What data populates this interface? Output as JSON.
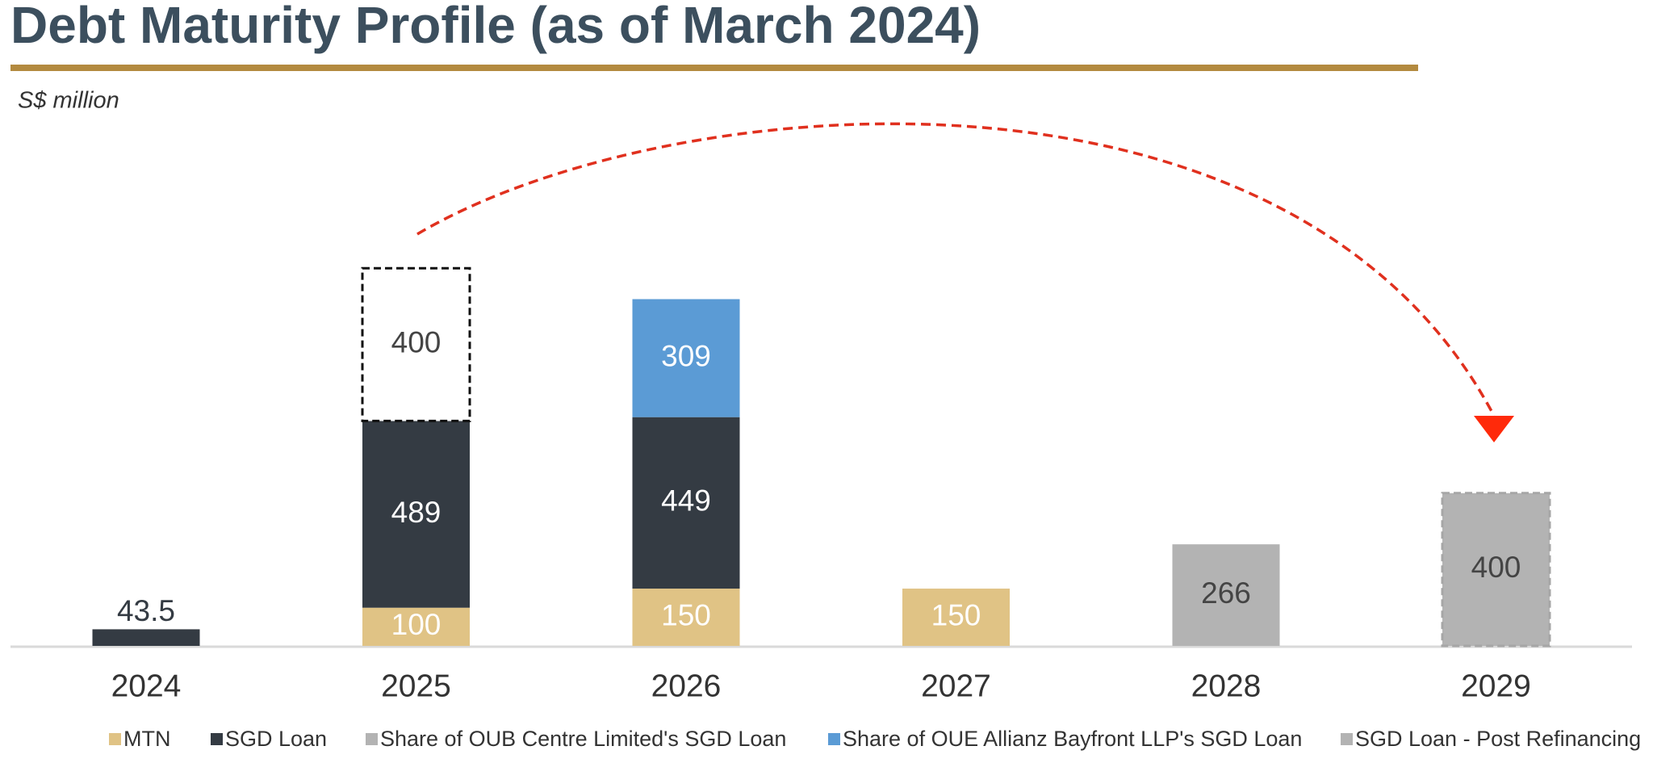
{
  "chart_data": {
    "type": "stacked_bar",
    "title": "Debt Maturity Profile (as of March 2024)",
    "subtitle": "S$ million",
    "categories": [
      "2024",
      "2025",
      "2026",
      "2027",
      "2028",
      "2029"
    ],
    "series": [
      {
        "name": "MTN",
        "color": "#e0c385",
        "values": [
          null,
          100,
          150,
          150,
          null,
          null
        ]
      },
      {
        "name": "SGD Loan",
        "color": "#343b43",
        "values": [
          43.5,
          489,
          449,
          null,
          null,
          null
        ]
      },
      {
        "name": "Share of OUB Centre Limited's SGD Loan",
        "color": "#b3b3b3",
        "values": [
          null,
          null,
          null,
          null,
          266,
          null
        ]
      },
      {
        "name": "Share of OUE Allianz Bayfront LLP's SGD Loan",
        "color": "#5b9bd5",
        "values": [
          null,
          null,
          309,
          null,
          null,
          null
        ]
      },
      {
        "name": "SGD Loan - Post Refinancing",
        "color": "#b3b3b3",
        "border_style": "dashed",
        "values": [
          null,
          null,
          null,
          null,
          null,
          400
        ]
      }
    ],
    "refinanced": {
      "values": [
        null,
        400,
        null,
        null,
        null,
        null
      ],
      "color": "#ffffff",
      "border_style": "dashed"
    }
  }
}
